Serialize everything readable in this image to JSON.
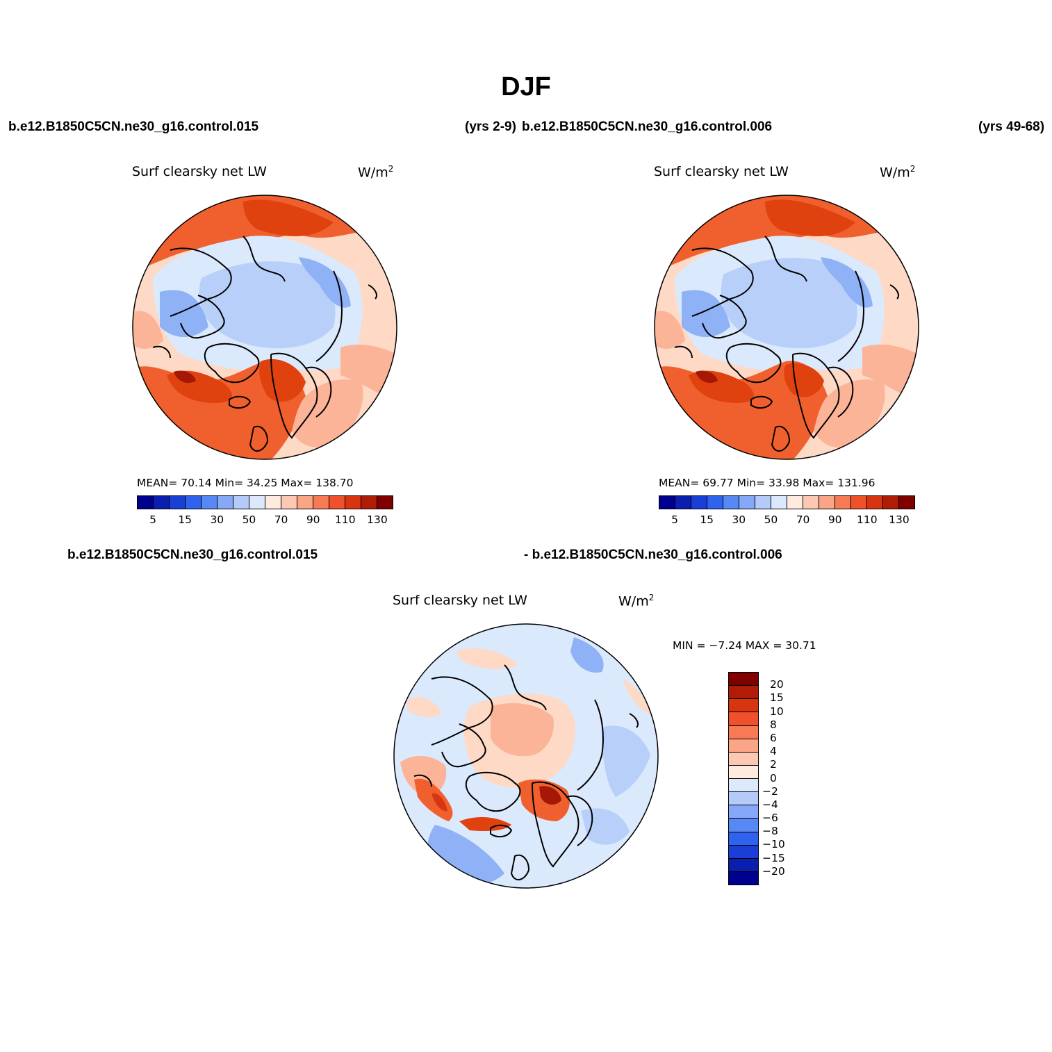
{
  "figure": {
    "title": "DJF",
    "case_a": "b.e12.B1850C5CN.ne30_g16.control.015",
    "years_a": "(yrs 2-9)",
    "case_b": "b.e12.B1850C5CN.ne30_g16.control.006",
    "years_b": "(yrs 49-68)",
    "diff_case_a": "b.e12.B1850C5CN.ne30_g16.control.015",
    "diff_case_b": "- b.e12.B1850C5CN.ne30_g16.control.006"
  },
  "panels": [
    {
      "variable": "Surf clearsky net LW",
      "units": "W/m",
      "units_sup": "2",
      "stats": "MEAN=   70.14   Min=   34.25   Max=  138.70"
    },
    {
      "variable": "Surf clearsky net LW",
      "units": "W/m",
      "units_sup": "2",
      "stats": "MEAN=   69.77   Min=   33.98   Max=  131.96"
    },
    {
      "variable": "Surf clearsky net LW",
      "units": "W/m",
      "units_sup": "2",
      "stats": "MIN =   −7.24  MAX =   30.71"
    }
  ],
  "colorbar_main": {
    "colors": [
      "#00008f",
      "#0a1fb0",
      "#1a3fd6",
      "#2f62ee",
      "#5888f5",
      "#85a8f8",
      "#b4cbfa",
      "#dce9fd",
      "#feeade",
      "#fcc8b3",
      "#fba486",
      "#f87a55",
      "#f0502a",
      "#d93410",
      "#b01c05",
      "#800000"
    ],
    "labels": [
      "5",
      "15",
      "30",
      "50",
      "70",
      "90",
      "110",
      "130"
    ]
  },
  "colorbar_diff": {
    "colors": [
      "#800000",
      "#b01c05",
      "#d93410",
      "#f0502a",
      "#f87a55",
      "#fba486",
      "#fcc8b3",
      "#feeade",
      "#dce9fd",
      "#b4cbfa",
      "#85a8f8",
      "#5888f5",
      "#2f62ee",
      "#1a3fd6",
      "#0a1fb0",
      "#00008f"
    ],
    "labels": [
      "20",
      "15",
      "10",
      "8",
      "6",
      "4",
      "2",
      "0",
      "−2",
      "−4",
      "−6",
      "−8",
      "−10",
      "−15",
      "−20"
    ]
  },
  "map_colors": {
    "deep_red": "#a41805",
    "red": "#e0420f",
    "red_orange": "#f0602e",
    "orange": "#f88a60",
    "salmon": "#fbb498",
    "peach": "#fdd9c6",
    "pale_blue": "#dbe9fc",
    "light_blue": "#b8cff9",
    "mid_blue": "#8fb1f6",
    "blue": "#5e8cf3",
    "land_line": "#000000"
  }
}
